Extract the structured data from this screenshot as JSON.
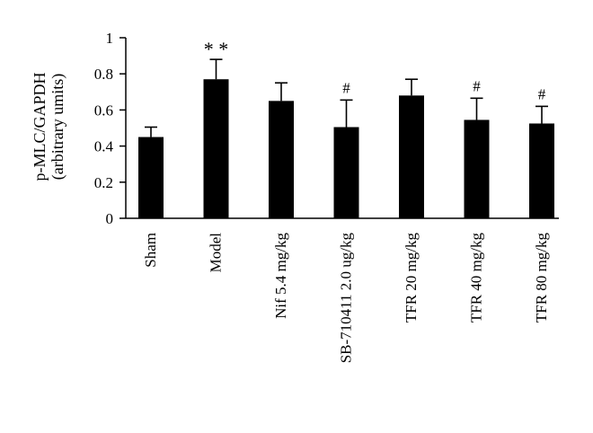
{
  "chart_data": {
    "type": "bar",
    "title": "",
    "xlabel": "",
    "ylabel": "p-MLC/GAPDH",
    "ylabel_line2": "(arbitrary umits)",
    "ylim": [
      0,
      1
    ],
    "yticks": [
      "0",
      "0.2",
      "0.4",
      "0.6",
      "0.8",
      "1"
    ],
    "ytick_values": [
      0,
      0.2,
      0.4,
      0.6,
      0.8,
      1
    ],
    "categories": [
      "Sham",
      "Model",
      "Nif 5.4 mg/kg",
      "SB-710411 2.0 ug/kg",
      "TFR 20 mg/kg",
      "TFR 40 mg/kg",
      "TFR 80 mg/kg"
    ],
    "values": [
      0.45,
      0.77,
      0.65,
      0.505,
      0.68,
      0.545,
      0.525
    ],
    "errors": [
      0.055,
      0.11,
      0.1,
      0.15,
      0.09,
      0.12,
      0.095
    ],
    "annotations": [
      "",
      "**",
      "",
      "#",
      "",
      "#",
      "#"
    ],
    "bar_color": "#000000",
    "grid": false,
    "legend": "none"
  }
}
